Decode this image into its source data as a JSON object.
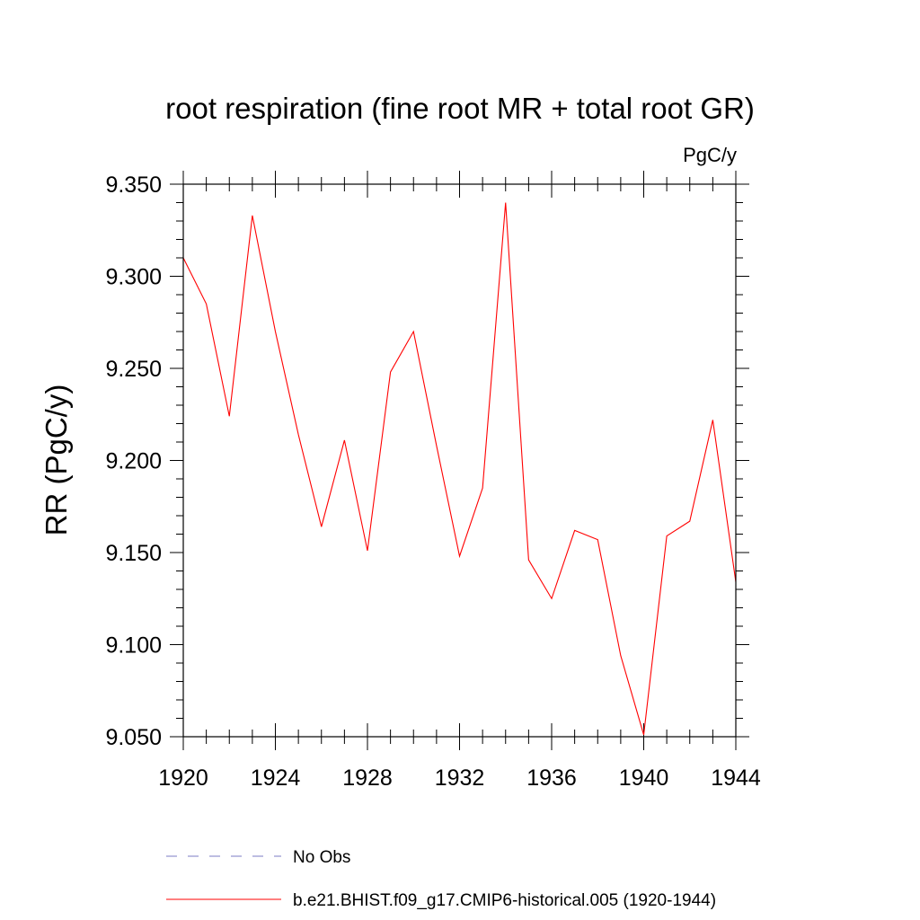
{
  "chart_data": {
    "type": "line",
    "title": "root respiration (fine root MR + total root GR)",
    "units_label": "PgC/y",
    "ylabel": "RR  (PgC/y)",
    "xlabel": "",
    "xlim": [
      1920,
      1944
    ],
    "ylim": [
      9.05,
      9.35
    ],
    "x_ticks": [
      "1920",
      "1924",
      "1928",
      "1932",
      "1936",
      "1940",
      "1944"
    ],
    "y_ticks": [
      "9.050",
      "9.100",
      "9.150",
      "9.200",
      "9.250",
      "9.300",
      "9.350"
    ],
    "grid": false,
    "legend_position": "bottom",
    "x": [
      1920,
      1921,
      1922,
      1923,
      1924,
      1925,
      1926,
      1927,
      1928,
      1929,
      1930,
      1931,
      1932,
      1933,
      1934,
      1935,
      1936,
      1937,
      1938,
      1939,
      1940,
      1941,
      1942,
      1943,
      1944
    ],
    "series": [
      {
        "name": "b.e21.BHIST.f09_g17.CMIP6-historical.005 (1920-1944)",
        "color": "#ff0000",
        "style": "solid",
        "values": [
          9.31,
          9.285,
          9.224,
          9.333,
          9.27,
          9.214,
          9.164,
          9.211,
          9.151,
          9.248,
          9.27,
          9.208,
          9.148,
          9.185,
          9.34,
          9.146,
          9.125,
          9.162,
          9.157,
          9.094,
          9.051,
          9.159,
          9.167,
          9.222,
          9.134
        ]
      }
    ],
    "legend": [
      {
        "label": "No Obs",
        "color": "#7b7bc4",
        "style": "dashed"
      },
      {
        "label": "b.e21.BHIST.f09_g17.CMIP6-historical.005 (1920-1944)",
        "color": "#ff0000",
        "style": "solid"
      }
    ]
  }
}
